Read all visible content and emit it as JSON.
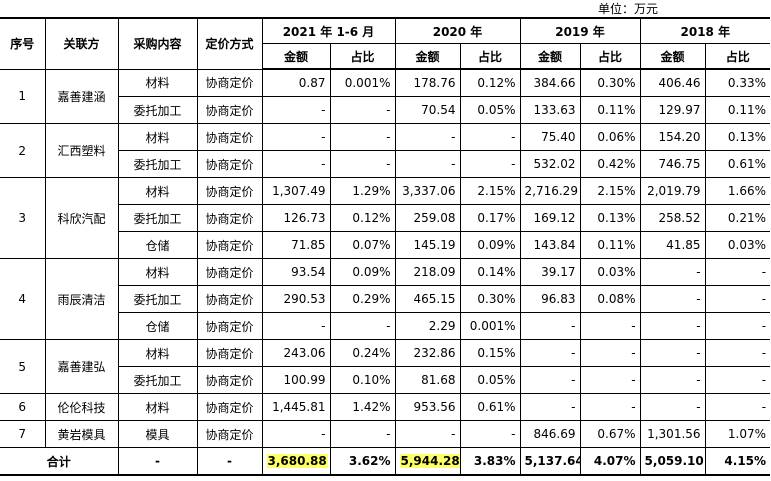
{
  "unit": "单位：万元",
  "header": {
    "no": "序号",
    "party": "关联方",
    "content": "采购内容",
    "pricing": "定价方式",
    "periods": [
      "2021 年 1-6 月",
      "2020 年",
      "2019 年",
      "2018 年"
    ],
    "subheaders": [
      [
        "金额",
        "占比"
      ],
      [
        "金额",
        "占比"
      ],
      [
        "金额",
        "占比"
      ],
      [
        "金额",
        "占比"
      ]
    ]
  },
  "groups": [
    {
      "no": "1",
      "party": "嘉善建涵",
      "rows": [
        {
          "content": "材料",
          "pricing": "协商定价",
          "cells": [
            "0.87",
            "0.001%",
            "178.76",
            "0.12%",
            "384.66",
            "0.30%",
            "406.46",
            "0.33%"
          ]
        },
        {
          "content": "委托加工",
          "pricing": "协商定价",
          "cells": [
            "-",
            "-",
            "70.54",
            "0.05%",
            "133.63",
            "0.11%",
            "129.97",
            "0.11%"
          ]
        }
      ]
    },
    {
      "no": "2",
      "party": "汇西塑料",
      "rows": [
        {
          "content": "材料",
          "pricing": "协商定价",
          "cells": [
            "-",
            "-",
            "-",
            "-",
            "75.40",
            "0.06%",
            "154.20",
            "0.13%"
          ]
        },
        {
          "content": "委托加工",
          "pricing": "协商定价",
          "cells": [
            "-",
            "-",
            "-",
            "-",
            "532.02",
            "0.42%",
            "746.75",
            "0.61%"
          ]
        }
      ]
    },
    {
      "no": "3",
      "party": "科欣汽配",
      "rows": [
        {
          "content": "材料",
          "pricing": "协商定价",
          "cells": [
            "1,307.49",
            "1.29%",
            "3,337.06",
            "2.15%",
            "2,716.29",
            "2.15%",
            "2,019.79",
            "1.66%"
          ]
        },
        {
          "content": "委托加工",
          "pricing": "协商定价",
          "cells": [
            "126.73",
            "0.12%",
            "259.08",
            "0.17%",
            "169.12",
            "0.13%",
            "258.52",
            "0.21%"
          ]
        },
        {
          "content": "仓储",
          "pricing": "协商定价",
          "cells": [
            "71.85",
            "0.07%",
            "145.19",
            "0.09%",
            "143.84",
            "0.11%",
            "41.85",
            "0.03%"
          ]
        }
      ]
    },
    {
      "no": "4",
      "party": "雨辰清洁",
      "rows": [
        {
          "content": "材料",
          "pricing": "协商定价",
          "cells": [
            "93.54",
            "0.09%",
            "218.09",
            "0.14%",
            "39.17",
            "0.03%",
            "-",
            "-"
          ]
        },
        {
          "content": "委托加工",
          "pricing": "协商定价",
          "cells": [
            "290.53",
            "0.29%",
            "465.15",
            "0.30%",
            "96.83",
            "0.08%",
            "-",
            "-"
          ]
        },
        {
          "content": "仓储",
          "pricing": "协商定价",
          "cells": [
            "-",
            "-",
            "2.29",
            "0.001%",
            "-",
            "-",
            "-",
            "-"
          ]
        }
      ]
    },
    {
      "no": "5",
      "party": "嘉善建弘",
      "rows": [
        {
          "content": "材料",
          "pricing": "协商定价",
          "cells": [
            "243.06",
            "0.24%",
            "232.86",
            "0.15%",
            "-",
            "-",
            "-",
            "-"
          ]
        },
        {
          "content": "委托加工",
          "pricing": "协商定价",
          "cells": [
            "100.99",
            "0.10%",
            "81.68",
            "0.05%",
            "-",
            "-",
            "-",
            "-"
          ]
        }
      ]
    },
    {
      "no": "6",
      "party": "伦伦科技",
      "rows": [
        {
          "content": "材料",
          "pricing": "协商定价",
          "cells": [
            "1,445.81",
            "1.42%",
            "953.56",
            "0.61%",
            "-",
            "-",
            "-",
            "-"
          ]
        }
      ]
    },
    {
      "no": "7",
      "party": "黄岩模具",
      "rows": [
        {
          "content": "模具",
          "pricing": "协商定价",
          "cells": [
            "-",
            "-",
            "-",
            "-",
            "846.69",
            "0.67%",
            "1,301.56",
            "1.07%"
          ]
        }
      ]
    }
  ],
  "total": {
    "label": "合计",
    "cells": [
      "-",
      "-",
      "3,680.88",
      "3.62%",
      "5,944.28",
      "3.83%",
      "5,137.64",
      "4.07%",
      "5,059.10",
      "4.15%"
    ],
    "highlighted_cells": [
      2,
      4
    ],
    "highlight_color": "#ffff66"
  }
}
